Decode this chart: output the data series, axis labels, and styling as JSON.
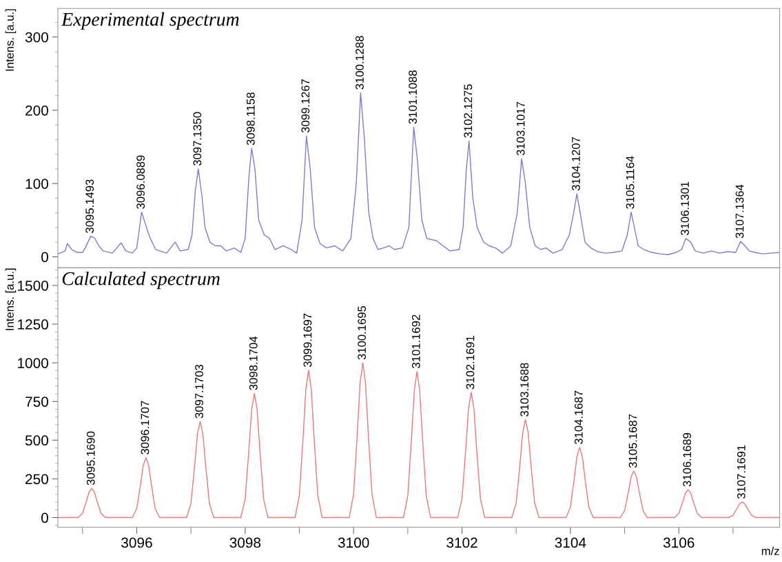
{
  "chart_data": [
    {
      "type": "line",
      "title": "Experimental spectrum",
      "ylabel": "Intens. [a.u.]",
      "xlim": [
        3094.545,
        3107.86
      ],
      "ylim": [
        -15,
        339
      ],
      "tick_labels": "y",
      "yticks": [
        0,
        100,
        200,
        300,
        {
          "value": 20,
          "label": null
        },
        {
          "value": 40,
          "label": null
        },
        {
          "value": 60,
          "label": null
        },
        {
          "value": 80,
          "label": null
        },
        {
          "value": 120,
          "label": null
        },
        {
          "value": 140,
          "label": null
        },
        {
          "value": 160,
          "label": null
        },
        {
          "value": 180,
          "label": null
        },
        {
          "value": 220,
          "label": null
        },
        {
          "value": 240,
          "label": null
        },
        {
          "value": 260,
          "label": null
        },
        {
          "value": 280,
          "label": null
        },
        {
          "value": 320,
          "label": null
        }
      ],
      "series": [
        {
          "color": "#7b7bd6",
          "x": [
            3094.55,
            3094.68,
            3094.72,
            3094.8,
            3094.9,
            3095.0,
            3095.05,
            3095.15,
            3095.22,
            3095.3,
            3095.38,
            3095.55,
            3095.71,
            3095.8,
            3095.92,
            3096.0,
            3096.09,
            3096.18,
            3096.25,
            3096.35,
            3096.55,
            3096.71,
            3096.8,
            3096.95,
            3097.02,
            3097.08,
            3097.135,
            3097.2,
            3097.26,
            3097.35,
            3097.45,
            3097.55,
            3097.65,
            3097.8,
            3097.92,
            3098.0,
            3098.07,
            3098.12,
            3098.18,
            3098.25,
            3098.35,
            3098.45,
            3098.55,
            3098.7,
            3098.85,
            3098.95,
            3099.05,
            3099.13,
            3099.2,
            3099.28,
            3099.38,
            3099.5,
            3099.65,
            3099.8,
            3099.95,
            3100.05,
            3100.13,
            3100.2,
            3100.28,
            3100.36,
            3100.45,
            3100.55,
            3100.66,
            3100.75,
            3100.9,
            3101.02,
            3101.11,
            3101.18,
            3101.26,
            3101.35,
            3101.53,
            3101.65,
            3101.78,
            3101.95,
            3102.02,
            3102.08,
            3102.13,
            3102.2,
            3102.28,
            3102.4,
            3102.5,
            3102.62,
            3102.75,
            3102.9,
            3103.02,
            3103.1,
            3103.17,
            3103.25,
            3103.35,
            3103.45,
            3103.55,
            3103.68,
            3103.85,
            3103.98,
            3104.06,
            3104.12,
            3104.19,
            3104.27,
            3104.38,
            3104.5,
            3104.65,
            3104.8,
            3104.95,
            3105.05,
            3105.12,
            3105.18,
            3105.25,
            3105.35,
            3105.5,
            3105.65,
            3105.8,
            3105.95,
            3106.05,
            3106.13,
            3106.22,
            3106.3,
            3106.45,
            3106.6,
            3106.75,
            3106.9,
            3107.05,
            3107.14,
            3107.22,
            3107.3,
            3107.4,
            3107.55,
            3107.7,
            3107.86
          ],
          "values": [
            4,
            8,
            18,
            10,
            6,
            6,
            12,
            28,
            26,
            15,
            8,
            5,
            19,
            8,
            5,
            12,
            61,
            40,
            25,
            10,
            5,
            20,
            8,
            10,
            30,
            90,
            120,
            85,
            40,
            20,
            15,
            15,
            8,
            12,
            6,
            25,
            110,
            148,
            120,
            50,
            30,
            25,
            10,
            15,
            10,
            5,
            50,
            165,
            120,
            40,
            18,
            12,
            15,
            8,
            25,
            100,
            224,
            160,
            60,
            25,
            10,
            12,
            15,
            10,
            12,
            40,
            177,
            130,
            50,
            25,
            22,
            15,
            8,
            10,
            40,
            120,
            158,
            80,
            40,
            20,
            15,
            12,
            5,
            15,
            60,
            134,
            100,
            40,
            15,
            10,
            12,
            5,
            10,
            30,
            60,
            86,
            55,
            20,
            12,
            7,
            5,
            6,
            8,
            30,
            61,
            40,
            15,
            10,
            6,
            4,
            3,
            6,
            10,
            25,
            20,
            8,
            5,
            8,
            5,
            7,
            6,
            21,
            15,
            8,
            6,
            4,
            5,
            6
          ]
        }
      ],
      "annotations": [
        {
          "text": "3095.1493",
          "x": 3095.15,
          "y": 28
        },
        {
          "text": "3096.0889",
          "x": 3096.09,
          "y": 61
        },
        {
          "text": "3097.1350",
          "x": 3097.135,
          "y": 120
        },
        {
          "text": "3098.1158",
          "x": 3098.12,
          "y": 148
        },
        {
          "text": "3099.1267",
          "x": 3099.13,
          "y": 165
        },
        {
          "text": "3100.1288",
          "x": 3100.13,
          "y": 224
        },
        {
          "text": "3101.1088",
          "x": 3101.11,
          "y": 177
        },
        {
          "text": "3102.1275",
          "x": 3102.13,
          "y": 158
        },
        {
          "text": "3103.1017",
          "x": 3103.1,
          "y": 134
        },
        {
          "text": "3104.1207",
          "x": 3104.12,
          "y": 86
        },
        {
          "text": "3105.1164",
          "x": 3105.12,
          "y": 61
        },
        {
          "text": "3106.1301",
          "x": 3106.13,
          "y": 25
        },
        {
          "text": "3107.1364",
          "x": 3107.14,
          "y": 21
        }
      ]
    },
    {
      "type": "line",
      "title": "Calculated spectrum",
      "ylabel": "Intens. [a.u.]",
      "xlabel": "m/z",
      "xlim": [
        3094.545,
        3107.86
      ],
      "ylim": [
        -62,
        1614
      ],
      "xticks": [
        {
          "value": 3095,
          "label": null
        },
        3096,
        {
          "value": 3097,
          "label": null
        },
        3098,
        {
          "value": 3099,
          "label": null
        },
        3100,
        {
          "value": 3101,
          "label": null
        },
        3102,
        {
          "value": 3103,
          "label": null
        },
        3104,
        {
          "value": 3105,
          "label": null
        },
        3106,
        {
          "value": 3107,
          "label": null
        }
      ],
      "yticks": [
        0,
        250,
        500,
        750,
        1000,
        1250,
        1500,
        {
          "value": -50,
          "label": null
        },
        {
          "value": 50,
          "label": null
        },
        {
          "value": 100,
          "label": null
        },
        {
          "value": 150,
          "label": null
        },
        {
          "value": 200,
          "label": null
        },
        {
          "value": 300,
          "label": null
        },
        {
          "value": 350,
          "label": null
        },
        {
          "value": 400,
          "label": null
        },
        {
          "value": 450,
          "label": null
        },
        {
          "value": 550,
          "label": null
        },
        {
          "value": 600,
          "label": null
        },
        {
          "value": 650,
          "label": null
        },
        {
          "value": 700,
          "label": null
        },
        {
          "value": 800,
          "label": null
        },
        {
          "value": 850,
          "label": null
        },
        {
          "value": 900,
          "label": null
        },
        {
          "value": 950,
          "label": null
        },
        {
          "value": 1050,
          "label": null
        },
        {
          "value": 1100,
          "label": null
        },
        {
          "value": 1150,
          "label": null
        },
        {
          "value": 1200,
          "label": null
        },
        {
          "value": 1300,
          "label": null
        },
        {
          "value": 1350,
          "label": null
        },
        {
          "value": 1400,
          "label": null
        },
        {
          "value": 1450,
          "label": null
        },
        {
          "value": 1550,
          "label": null
        },
        {
          "value": 1600,
          "label": null
        }
      ],
      "series": [
        {
          "color": "#ee7777",
          "x": [
            3094.545,
            3094.92,
            3095.0,
            3095.07,
            3095.12,
            3095.17,
            3095.22,
            3095.27,
            3095.34,
            3095.42,
            3095.92,
            3096.0,
            3096.07,
            3096.12,
            3096.17,
            3096.22,
            3096.27,
            3096.34,
            3096.42,
            3096.92,
            3097.0,
            3097.07,
            3097.12,
            3097.17,
            3097.22,
            3097.27,
            3097.34,
            3097.42,
            3097.92,
            3098.0,
            3098.07,
            3098.12,
            3098.17,
            3098.22,
            3098.27,
            3098.34,
            3098.42,
            3098.92,
            3099.0,
            3099.07,
            3099.12,
            3099.17,
            3099.22,
            3099.27,
            3099.34,
            3099.42,
            3099.92,
            3100.0,
            3100.07,
            3100.12,
            3100.17,
            3100.22,
            3100.27,
            3100.34,
            3100.42,
            3100.92,
            3101.0,
            3101.07,
            3101.12,
            3101.17,
            3101.22,
            3101.27,
            3101.34,
            3101.42,
            3101.92,
            3102.0,
            3102.07,
            3102.12,
            3102.17,
            3102.22,
            3102.27,
            3102.34,
            3102.42,
            3102.92,
            3103.0,
            3103.07,
            3103.12,
            3103.17,
            3103.22,
            3103.27,
            3103.34,
            3103.42,
            3103.92,
            3104.0,
            3104.07,
            3104.12,
            3104.17,
            3104.22,
            3104.27,
            3104.34,
            3104.42,
            3104.92,
            3105.0,
            3105.07,
            3105.12,
            3105.17,
            3105.22,
            3105.27,
            3105.34,
            3105.42,
            3105.92,
            3106.0,
            3106.07,
            3106.12,
            3106.17,
            3106.22,
            3106.27,
            3106.34,
            3106.42,
            3106.92,
            3107.0,
            3107.07,
            3107.12,
            3107.17,
            3107.22,
            3107.27,
            3107.34,
            3107.42,
            3107.86
          ],
          "values": [
            0,
            0,
            28,
            104,
            164,
            189,
            164,
            104,
            28,
            0,
            0,
            58,
            213,
            337,
            387,
            337,
            213,
            58,
            0,
            0,
            93,
            342,
            540,
            621,
            540,
            342,
            93,
            0,
            0,
            120,
            442,
            699,
            803,
            699,
            442,
            120,
            0,
            0,
            143,
            524,
            828,
            952,
            828,
            524,
            143,
            0,
            0,
            150,
            550,
            870,
            1000,
            870,
            550,
            150,
            0,
            0,
            142,
            519,
            821,
            944,
            821,
            519,
            142,
            0,
            0,
            121,
            444,
            703,
            808,
            703,
            444,
            121,
            0,
            0,
            95,
            348,
            550,
            632,
            550,
            348,
            95,
            0,
            0,
            68,
            249,
            394,
            453,
            394,
            249,
            68,
            0,
            0,
            45,
            166,
            262,
            301,
            262,
            166,
            45,
            0,
            0,
            27,
            99,
            157,
            180,
            157,
            99,
            27,
            0,
            0,
            15,
            56,
            88,
            101,
            88,
            56,
            15,
            0,
            0
          ]
        }
      ],
      "annotations": [
        {
          "text": "3095.1690",
          "x": 3095.17,
          "y": 189
        },
        {
          "text": "3096.1707",
          "x": 3096.17,
          "y": 387
        },
        {
          "text": "3097.1703",
          "x": 3097.17,
          "y": 621
        },
        {
          "text": "3098.1704",
          "x": 3098.17,
          "y": 803
        },
        {
          "text": "3099.1697",
          "x": 3099.17,
          "y": 952
        },
        {
          "text": "3100.1695",
          "x": 3100.17,
          "y": 1000
        },
        {
          "text": "3101.1692",
          "x": 3101.17,
          "y": 944
        },
        {
          "text": "3102.1691",
          "x": 3102.17,
          "y": 808
        },
        {
          "text": "3103.1688",
          "x": 3103.17,
          "y": 632
        },
        {
          "text": "3104.1687",
          "x": 3104.17,
          "y": 453
        },
        {
          "text": "3105.1687",
          "x": 3105.17,
          "y": 301
        },
        {
          "text": "3106.1689",
          "x": 3106.17,
          "y": 180
        },
        {
          "text": "3107.1691",
          "x": 3107.17,
          "y": 101
        }
      ]
    }
  ]
}
